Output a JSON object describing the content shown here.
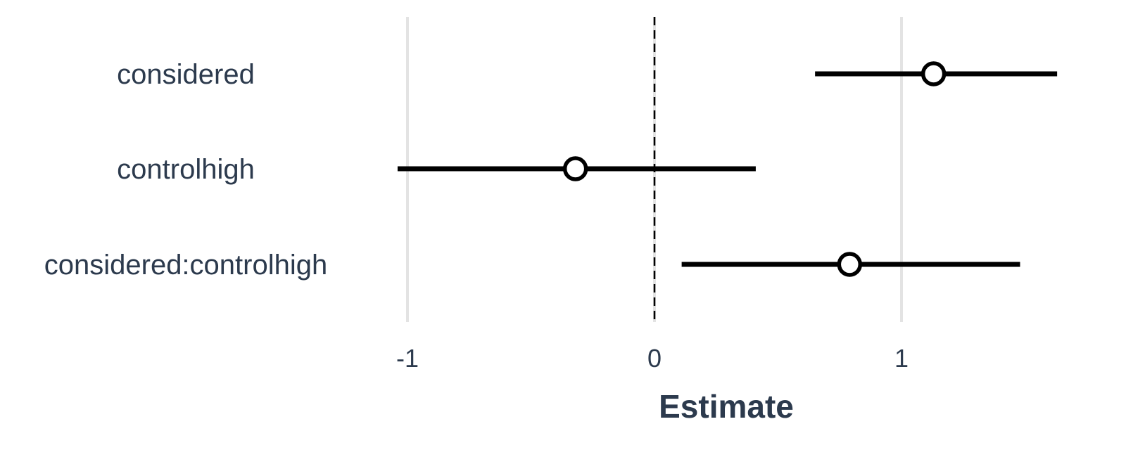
{
  "chart_data": {
    "type": "coefficient-plot",
    "xlabel": "Estimate",
    "ylabel": "",
    "xlim": [
      -1.05,
      1.65
    ],
    "x_ticks": [
      {
        "value": -1,
        "label": "-1"
      },
      {
        "value": 0,
        "label": "0"
      },
      {
        "value": 1,
        "label": "1"
      }
    ],
    "grid": true,
    "reference_line": {
      "value": 0,
      "style": "dashed"
    },
    "terms": [
      {
        "label": "considered",
        "estimate": 1.13,
        "lower": 0.65,
        "upper": 1.63
      },
      {
        "label": "controlhigh",
        "estimate": -0.32,
        "lower": -1.04,
        "upper": 0.41
      },
      {
        "label": "considered:controlhigh",
        "estimate": 0.79,
        "lower": 0.11,
        "upper": 1.48
      }
    ],
    "colors": {
      "text": "#2c3a4d",
      "grid": "#e3e3e3",
      "mark": "#000000",
      "marker_fill": "#ffffff"
    }
  }
}
